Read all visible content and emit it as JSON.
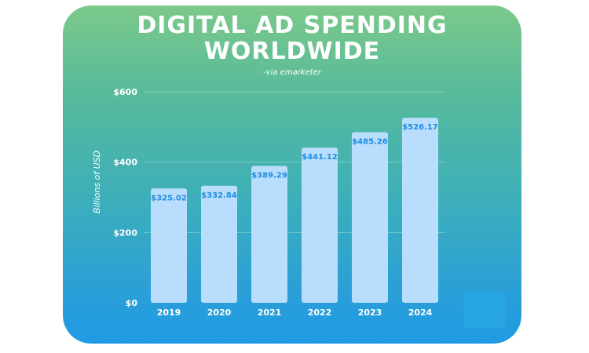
{
  "header": {
    "title_line1": "DIGITAL AD SPENDING",
    "title_line2": "WORLDWIDE",
    "subtitle": "-via emarketer"
  },
  "colors": {
    "bar_fill": "#b9defd",
    "value_label": "#1e8de0",
    "axis_text": "#ffffff",
    "grid": "#9fe0cf"
  },
  "chart_data": {
    "type": "bar",
    "title": "DIGITAL AD SPENDING WORLDWIDE",
    "subtitle": "-via emarketer",
    "xlabel": "",
    "ylabel": "Billions of USD",
    "categories": [
      "2019",
      "2020",
      "2021",
      "2022",
      "2023",
      "2024"
    ],
    "values": [
      325.02,
      332.84,
      389.29,
      441.12,
      485.26,
      526.17
    ],
    "value_labels": [
      "$325.02",
      "$332.84",
      "$389.29",
      "$441.12",
      "$485.26",
      "$526.17"
    ],
    "ylim": [
      0,
      600
    ],
    "yticks": [
      0,
      200,
      400,
      600
    ],
    "ytick_labels": [
      "$0",
      "$200",
      "$400",
      "$600"
    ],
    "grid": true,
    "legend": "none"
  }
}
